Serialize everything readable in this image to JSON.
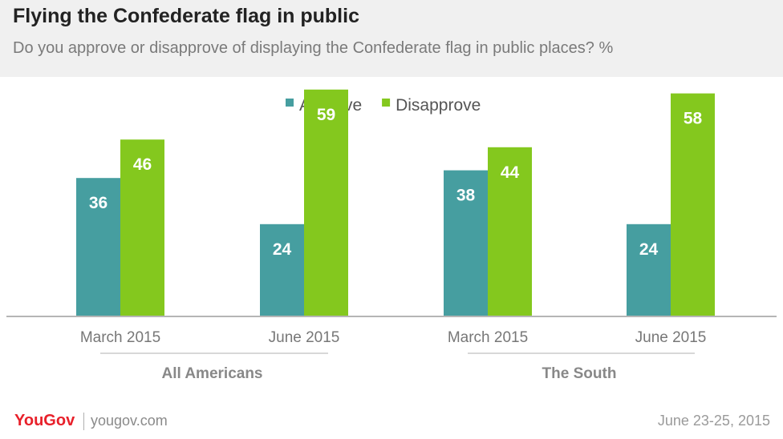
{
  "chart_data": {
    "type": "bar",
    "title": "Flying the Confederate flag in public",
    "subtitle": "Do you approve or disapprove of displaying the Confederate flag in public places? %",
    "groups": [
      {
        "name": "All Americans",
        "categories": [
          "March 2015",
          "June 2015"
        ]
      },
      {
        "name": "The South",
        "categories": [
          "March 2015",
          "June 2015"
        ]
      }
    ],
    "categories": [
      "March 2015",
      "June 2015",
      "March 2015",
      "June 2015"
    ],
    "series": [
      {
        "name": "Approve",
        "color": "#469ea0",
        "values": [
          36,
          24,
          38,
          24
        ]
      },
      {
        "name": "Disapprove",
        "color": "#84c81e",
        "values": [
          46,
          59,
          44,
          58
        ]
      }
    ],
    "ylim": [
      0,
      65
    ],
    "grid": false,
    "legend": "top-center"
  },
  "footer": {
    "logo": "YouGov",
    "site": "yougov.com",
    "date": "June 23-25, 2015"
  }
}
